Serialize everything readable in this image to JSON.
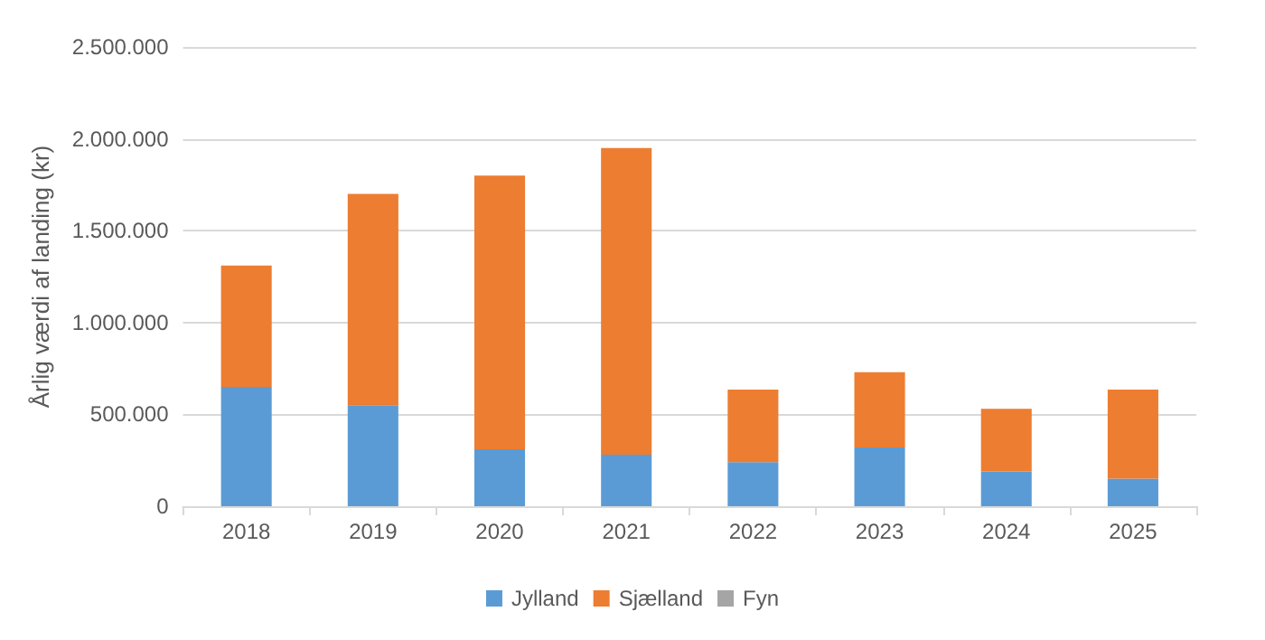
{
  "chart_data": {
    "type": "bar",
    "stacked": true,
    "ylabel": "Årlig værdi af landing (kr)",
    "categories": [
      "2018",
      "2019",
      "2020",
      "2021",
      "2022",
      "2023",
      "2024",
      "2025"
    ],
    "series": [
      {
        "name": "Jylland",
        "color": "#5b9bd5",
        "values": [
          650000,
          550000,
          310000,
          280000,
          240000,
          320000,
          190000,
          150000
        ]
      },
      {
        "name": "Sjælland",
        "color": "#ed7d31",
        "values": [
          660000,
          1150000,
          1490000,
          1670000,
          395000,
          410000,
          340000,
          485000
        ]
      },
      {
        "name": "Fyn",
        "color": "#a5a5a5",
        "values": [
          0,
          0,
          0,
          0,
          0,
          0,
          0,
          0
        ]
      }
    ],
    "ylim": [
      0,
      2500000
    ],
    "yticks": [
      {
        "value": 0,
        "label": "0"
      },
      {
        "value": 500000,
        "label": "500.000"
      },
      {
        "value": 1000000,
        "label": "1.000.000"
      },
      {
        "value": 1500000,
        "label": "1.500.000"
      },
      {
        "value": 2000000,
        "label": "2.000.000"
      },
      {
        "value": 2500000,
        "label": "2.500.000"
      }
    ],
    "grid": "y",
    "legend": "bottom"
  }
}
